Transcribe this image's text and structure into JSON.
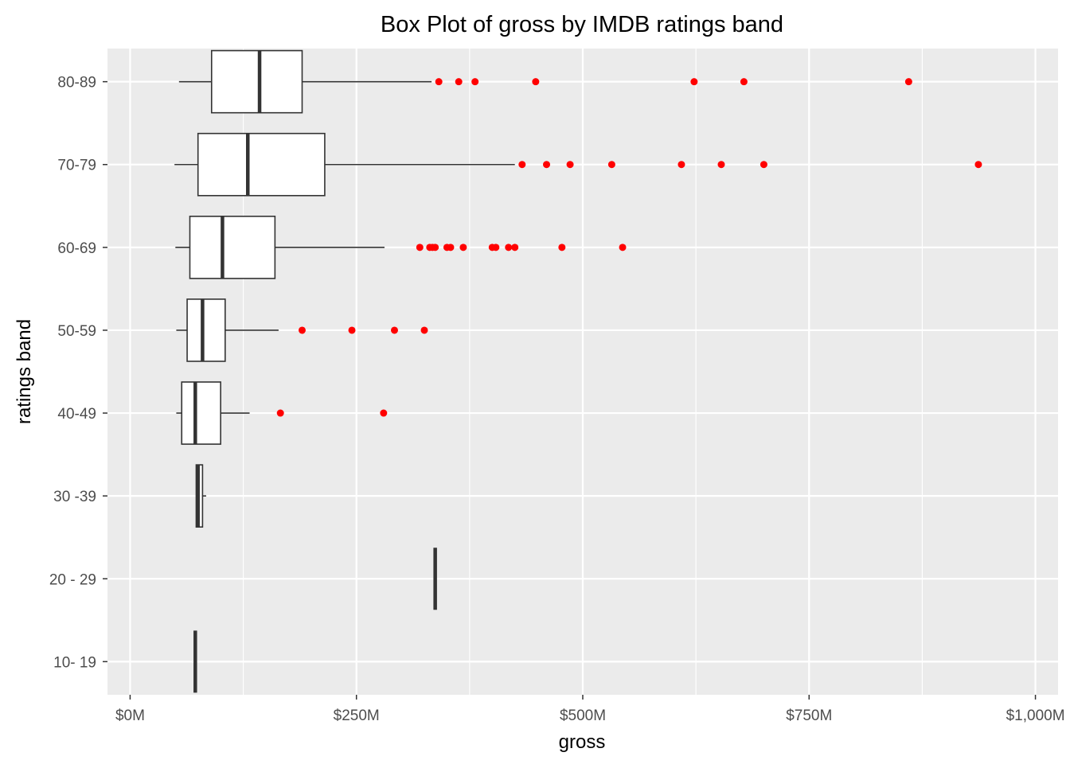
{
  "chart_data": {
    "type": "boxplot",
    "title": "Box Plot of gross by IMDB ratings band",
    "xlabel": "gross",
    "ylabel": "ratings band",
    "xlim": [
      -25,
      1025
    ],
    "x_ticks": [
      0,
      250,
      500,
      750,
      1000
    ],
    "x_tick_labels": [
      "$0M",
      "$250M",
      "$500M",
      "$750M",
      "$1,000M"
    ],
    "grid": true,
    "background": "#ebebeb",
    "grid_color": "#ffffff",
    "outlier_color": "#ff0000",
    "box_fill": "#ffffff",
    "box_stroke": "#333333",
    "categories": [
      "10- 19",
      "20 - 29",
      "30 -39",
      "40-49",
      "50-59",
      "60-69",
      "70-79",
      "80-89"
    ],
    "boxes": [
      {
        "category": "10- 19",
        "whisker_low": 72,
        "q1": 72,
        "median": 72,
        "q3": 72,
        "whisker_high": 72,
        "outliers": []
      },
      {
        "category": "20 - 29",
        "whisker_low": 337,
        "q1": 337,
        "median": 337,
        "q3": 337,
        "whisker_high": 337,
        "outliers": []
      },
      {
        "category": "30 -39",
        "whisker_low": 73,
        "q1": 73,
        "median": 75,
        "q3": 80,
        "whisker_high": 84,
        "outliers": []
      },
      {
        "category": "40-49",
        "whisker_low": 51,
        "q1": 57,
        "median": 72,
        "q3": 100,
        "whisker_high": 132,
        "outliers": [
          166,
          280
        ]
      },
      {
        "category": "50-59",
        "whisker_low": 51,
        "q1": 63,
        "median": 80,
        "q3": 105,
        "whisker_high": 164,
        "outliers": [
          190,
          245,
          292,
          325
        ]
      },
      {
        "category": "60-69",
        "whisker_low": 50,
        "q1": 66,
        "median": 102,
        "q3": 160,
        "whisker_high": 281,
        "outliers": [
          320,
          331,
          334,
          337,
          350,
          354,
          368,
          400,
          404,
          418,
          425,
          477,
          544
        ]
      },
      {
        "category": "70-79",
        "whisker_low": 49,
        "q1": 75,
        "median": 130,
        "q3": 215,
        "whisker_high": 425,
        "outliers": [
          433,
          460,
          486,
          532,
          609,
          653,
          700,
          937
        ]
      },
      {
        "category": "80-89",
        "whisker_low": 54,
        "q1": 90,
        "median": 143,
        "q3": 190,
        "whisker_high": 333,
        "outliers": [
          341,
          363,
          381,
          448,
          623,
          678,
          860
        ]
      }
    ]
  }
}
